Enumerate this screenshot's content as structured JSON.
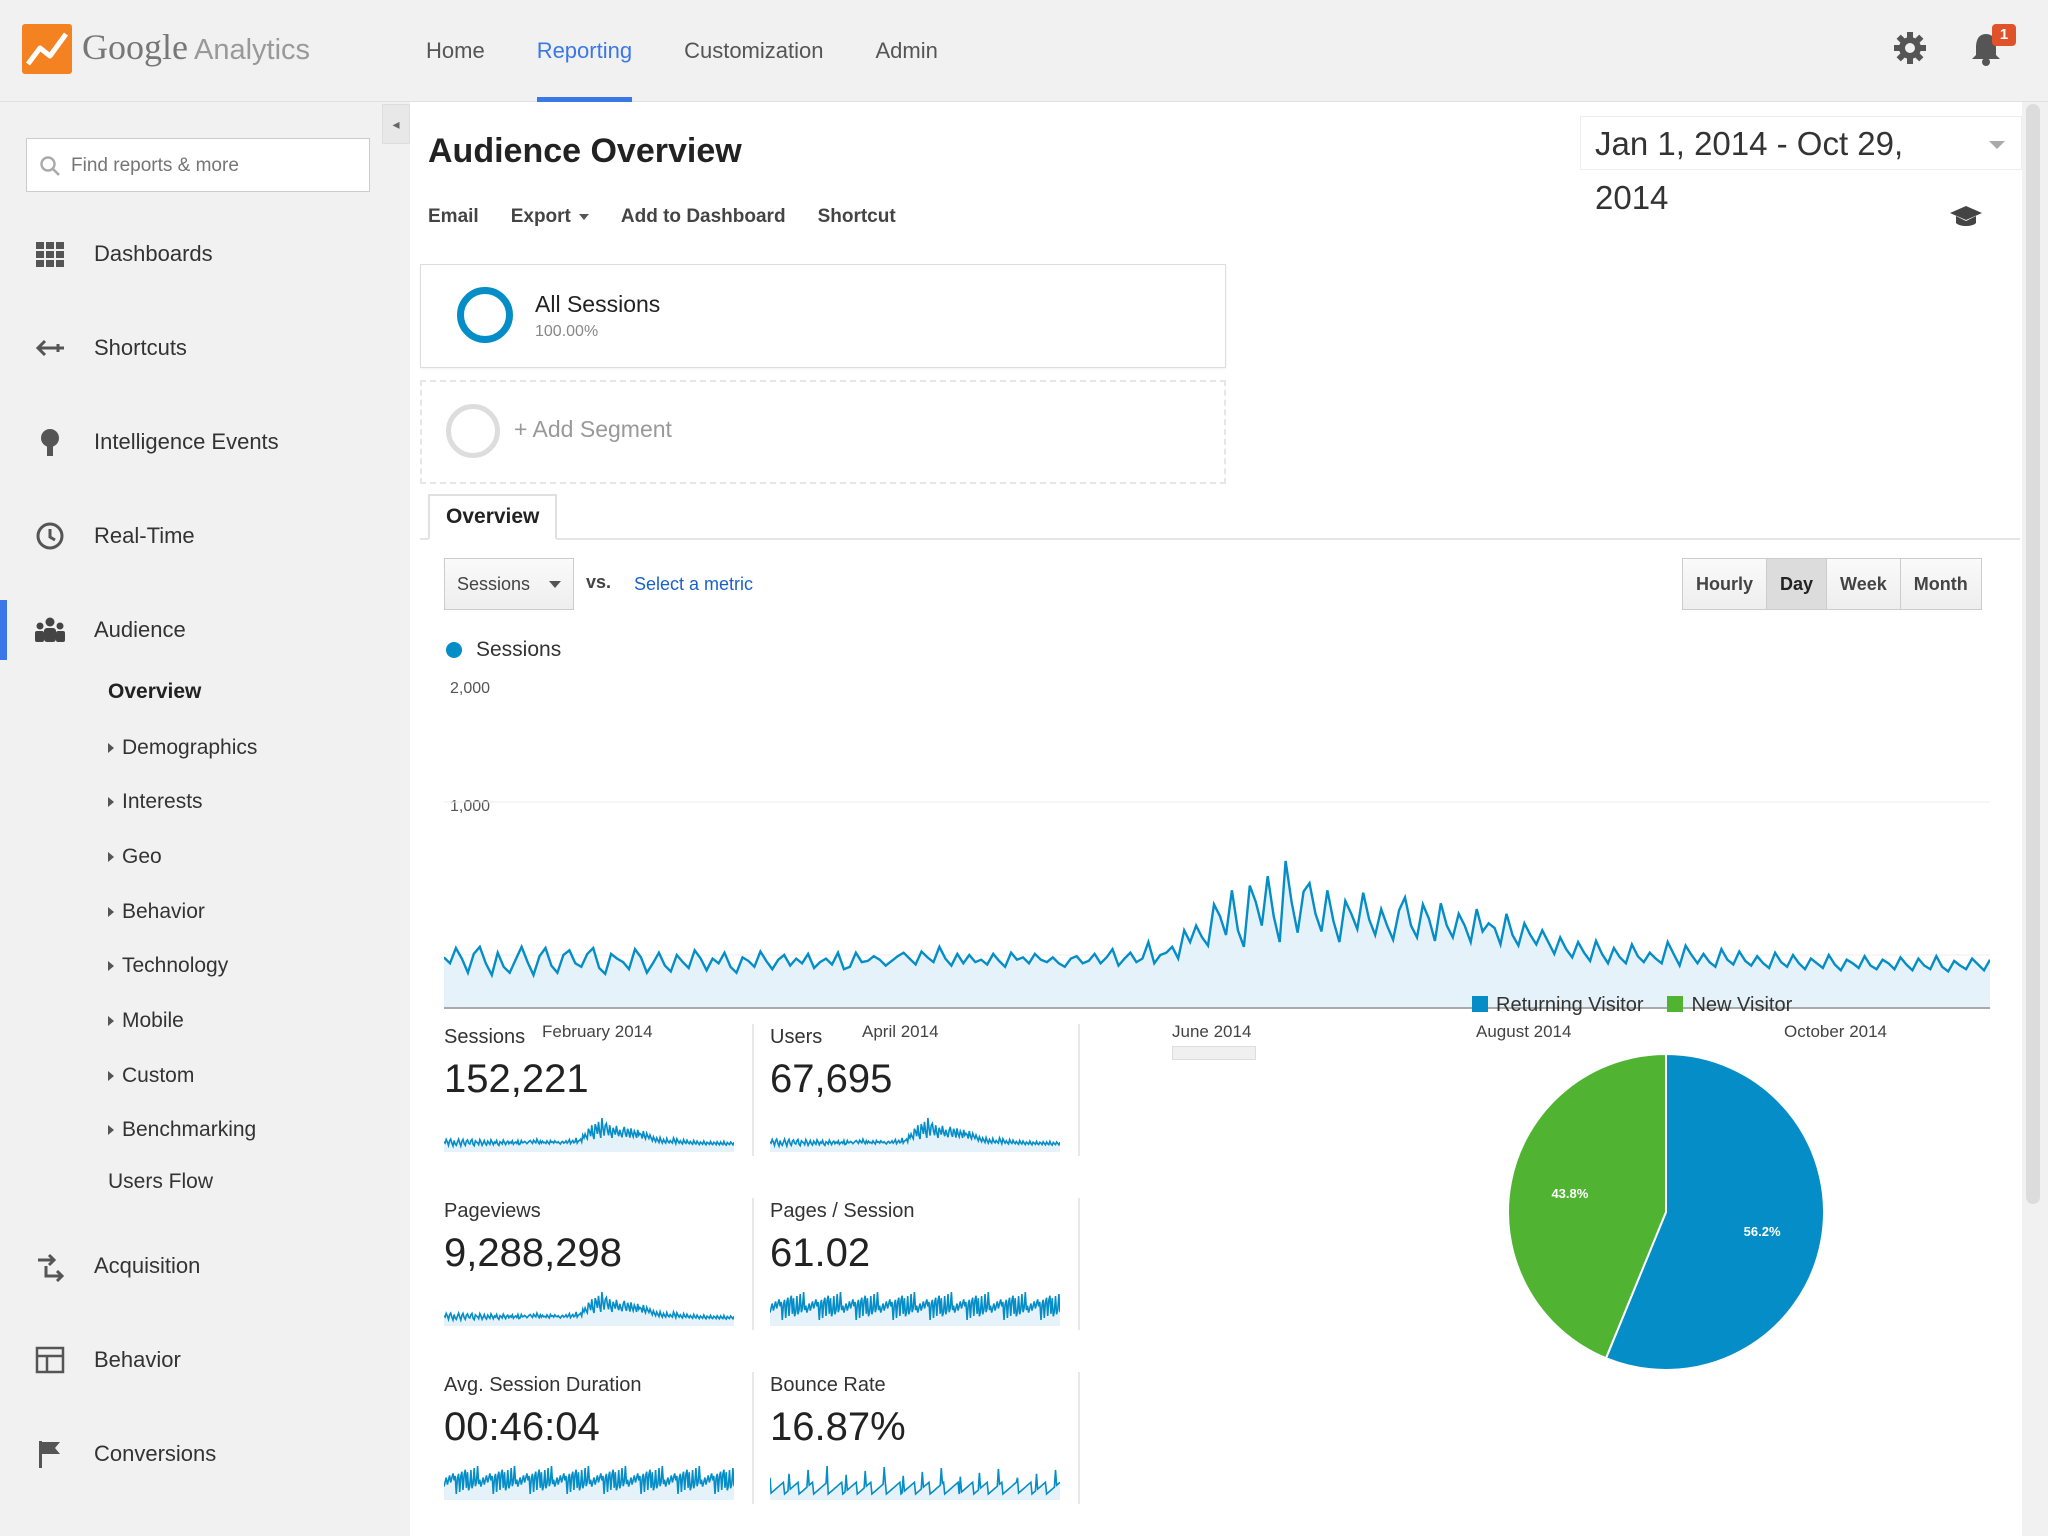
{
  "app": {
    "brand_google": "Google",
    "brand_analytics": "Analytics",
    "notification_count": "1"
  },
  "nav": {
    "items": [
      "Home",
      "Reporting",
      "Customization",
      "Admin"
    ],
    "active": "Reporting"
  },
  "sidebar": {
    "search_placeholder": "Find reports & more",
    "items": [
      {
        "label": "Dashboards",
        "icon": "grid-icon"
      },
      {
        "label": "Shortcuts",
        "icon": "shortcut-arrow-icon"
      },
      {
        "label": "Intelligence Events",
        "icon": "lightbulb-icon"
      },
      {
        "label": "Real-Time",
        "icon": "clock-icon"
      },
      {
        "label": "Audience",
        "icon": "people-icon"
      }
    ],
    "audience_sub": {
      "overview": "Overview",
      "expandable": [
        "Demographics",
        "Interests",
        "Geo",
        "Behavior",
        "Technology",
        "Mobile",
        "Custom",
        "Benchmarking"
      ],
      "users_flow": "Users Flow"
    },
    "bottom_items": [
      {
        "label": "Acquisition",
        "icon": "acquisition-icon"
      },
      {
        "label": "Behavior",
        "icon": "layout-icon"
      },
      {
        "label": "Conversions",
        "icon": "flag-icon"
      }
    ]
  },
  "main": {
    "title": "Audience Overview",
    "date_range": "Jan 1, 2014 - Oct 29, 2014",
    "actions": {
      "email": "Email",
      "export": "Export",
      "add_to_dashboard": "Add to Dashboard",
      "shortcut": "Shortcut"
    },
    "segment": {
      "name": "All Sessions",
      "percent": "100.00%"
    },
    "add_segment": "+ Add Segment",
    "tab": "Overview",
    "metric_select": "Sessions",
    "vs": "vs.",
    "select_metric": "Select a metric",
    "granularity": [
      "Hourly",
      "Day",
      "Week",
      "Month"
    ],
    "granularity_active": "Day"
  },
  "colors": {
    "accent": "#3b78e7",
    "series": "#058dc7",
    "new_visitor": "#50b432"
  },
  "chart_data": [
    {
      "type": "line",
      "series_name": "Sessions",
      "yticks": [
        "2,000",
        "1,000"
      ],
      "ylim": [
        0,
        2000
      ],
      "xticks": [
        "February 2014",
        "April 2014",
        "June 2014",
        "August 2014",
        "October 2014"
      ],
      "x_start": "2014-01-01",
      "x_end": "2014-10-29",
      "values": [
        430,
        380,
        510,
        420,
        300,
        460,
        520,
        380,
        280,
        470,
        350,
        300,
        410,
        520,
        390,
        280,
        440,
        510,
        360,
        300,
        450,
        490,
        380,
        350,
        460,
        510,
        340,
        290,
        460,
        420,
        390,
        330,
        500,
        430,
        300,
        380,
        470,
        360,
        310,
        450,
        390,
        340,
        490,
        420,
        320,
        420,
        380,
        470,
        350,
        300,
        430,
        400,
        350,
        480,
        400,
        330,
        410,
        450,
        360,
        420,
        380,
        460,
        340,
        390,
        420,
        370,
        470,
        330,
        350,
        470,
        390,
        400,
        440,
        410,
        360,
        400,
        440,
        470,
        420,
        370,
        480,
        430,
        390,
        520,
        420,
        360,
        460,
        380,
        450,
        390,
        410,
        370,
        460,
        400,
        350,
        470,
        410,
        430,
        380,
        460,
        410,
        390,
        430,
        380,
        350,
        420,
        440,
        380,
        400,
        460,
        380,
        430,
        500,
        360,
        420,
        470,
        390,
        420,
        560,
        380,
        450,
        470,
        520,
        420,
        660,
        560,
        700,
        600,
        530,
        880,
        780,
        620,
        1000,
        660,
        520,
        1040,
        900,
        700,
        1120,
        780,
        560,
        1250,
        900,
        640,
        990,
        1060,
        800,
        650,
        1000,
        740,
        560,
        910,
        800,
        670,
        980,
        750,
        620,
        840,
        700,
        580,
        830,
        940,
        700,
        600,
        880,
        760,
        570,
        890,
        700,
        600,
        800,
        700,
        560,
        840,
        650,
        720,
        680,
        540,
        800,
        620,
        530,
        720,
        620,
        540,
        660,
        560,
        460,
        600,
        500,
        430,
        560,
        470,
        400,
        570,
        460,
        380,
        510,
        430,
        380,
        540,
        440,
        390,
        470,
        420,
        380,
        560,
        460,
        360,
        530,
        450,
        380,
        460,
        390,
        350,
        500,
        410,
        370,
        480,
        400,
        360,
        440,
        380,
        340,
        470,
        390,
        350,
        450,
        380,
        330,
        420,
        380,
        340,
        450,
        370,
        320,
        410,
        380,
        340,
        440,
        360,
        330,
        410,
        380,
        330,
        430,
        370,
        320,
        420,
        360,
        330,
        440,
        350,
        310,
        400,
        360,
        330,
        420,
        370,
        320,
        410
      ]
    },
    {
      "type": "pie",
      "legend": [
        "Returning Visitor",
        "New Visitor"
      ],
      "slices": [
        {
          "label": "Returning Visitor",
          "value": 56.2,
          "display": "56.2%",
          "color": "#058dc7"
        },
        {
          "label": "New Visitor",
          "value": 43.8,
          "display": "43.8%",
          "color": "#50b432"
        }
      ]
    }
  ],
  "metrics": [
    {
      "label": "Sessions",
      "value": "152,221",
      "spark": "sessions"
    },
    {
      "label": "Users",
      "value": "67,695",
      "spark": "sessions"
    },
    {
      "label": "Pageviews",
      "value": "9,288,298",
      "spark": "sessions"
    },
    {
      "label": "Pages / Session",
      "value": "61.02",
      "spark": "flat"
    },
    {
      "label": "Avg. Session Duration",
      "value": "00:46:04",
      "spark": "flat"
    },
    {
      "label": "Bounce Rate",
      "value": "16.87%",
      "spark": "spiky"
    }
  ]
}
